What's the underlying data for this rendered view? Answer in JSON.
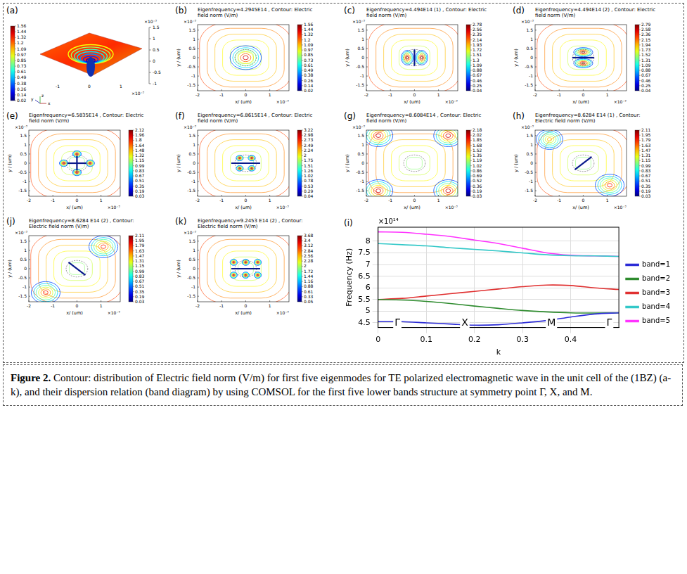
{
  "figure": {
    "contour_axes": {
      "xlabel": "x/ (um)",
      "ylabel": "y / (um)",
      "multiplier": "×10⁻⁷",
      "xlim": [
        -2,
        1.8
      ],
      "ylim": [
        -1.8,
        1.8
      ],
      "xticks": [
        -2,
        -1,
        0,
        1
      ],
      "yticks": [
        1.5,
        1,
        0.5,
        0,
        -0.5,
        -1,
        -1.5
      ]
    },
    "surface_panel": {
      "label": "(a)",
      "colorbar_ticks": [
        1.56,
        1.44,
        1.32,
        1.2,
        1.09,
        0.97,
        0.85,
        0.73,
        0.61,
        0.49,
        0.38,
        0.26,
        0.14,
        0.02
      ],
      "vertical_ticks": [
        1.5,
        1,
        0.5,
        0,
        -0.5,
        -1
      ],
      "xticks": [
        -1,
        0,
        1
      ],
      "axes_triad": [
        "y",
        "z",
        "x"
      ]
    },
    "panels": [
      {
        "label": "(b)",
        "title": "Eigenfrequency=4.2945E14 , Contour: Electric field norm (V/m)",
        "colorbar_ticks": [
          1.56,
          1.44,
          1.32,
          1.2,
          1.09,
          0.97,
          0.85,
          0.73,
          0.61,
          0.49,
          0.38,
          0.26,
          0.14,
          0.02
        ]
      },
      {
        "label": "(c)",
        "title": "Eigenfrequency=4.494E14 (1) , Contour: Electric field norm (V/m)",
        "colorbar_ticks": [
          2.78,
          2.56,
          2.35,
          2.14,
          1.93,
          1.72,
          1.51,
          1.3,
          1.09,
          0.88,
          0.67,
          0.46,
          0.25,
          0.04
        ]
      },
      {
        "label": "(d)",
        "title": "Eigenfrequency=4.494E14 (2) , Contour: Electric field norm (V/m)",
        "colorbar_ticks": [
          2.79,
          2.58,
          2.36,
          2.15,
          1.94,
          1.73,
          1.52,
          1.31,
          1.09,
          0.88,
          0.67,
          0.46,
          0.25,
          0.04
        ]
      },
      {
        "label": "(e)",
        "title": "Eigenfrequency=6.5835E14 , Contour: Electric field norm (V/m)",
        "colorbar_ticks": [
          2.12,
          1.96,
          1.8,
          1.64,
          1.48,
          1.32,
          1.15,
          0.99,
          0.83,
          0.67,
          0.51,
          0.35,
          0.19,
          0.03
        ]
      },
      {
        "label": "(f)",
        "title": "Eigenfrequency=6.8615E14 , Contour: Electric field norm (V/m)",
        "colorbar_ticks": [
          3.22,
          2.98,
          2.73,
          2.49,
          2.24,
          2,
          1.75,
          1.51,
          1.26,
          1.02,
          0.78,
          0.53,
          0.29,
          0.04
        ]
      },
      {
        "label": "(g)",
        "title": "Eigenfrequency=8.6084E14 , Contour: Electric field norm (V/m)",
        "colorbar_ticks": [
          2.18,
          2.02,
          1.85,
          1.68,
          1.52,
          1.35,
          1.19,
          1.02,
          0.86,
          0.69,
          0.52,
          0.36,
          0.19,
          0.03
        ]
      },
      {
        "label": "(h)",
        "title": "Eigenfrequency=8.6284 E14 (1) , Contour: Electric field norm (V/m)",
        "colorbar_ticks": [
          2.11,
          1.95,
          1.79,
          1.63,
          1.47,
          1.31,
          1.15,
          0.99,
          0.83,
          0.67,
          0.51,
          0.35,
          0.19,
          0.03
        ]
      },
      {
        "label": "(j)",
        "title": "Eigenfrequency=8.6284 E14 (2) , Contour: Electric field norm (V/m)",
        "colorbar_ticks": [
          2.11,
          1.95,
          1.79,
          1.63,
          1.47,
          1.31,
          1.15,
          0.99,
          0.83,
          0.67,
          0.51,
          0.35,
          0.19,
          0.03
        ]
      },
      {
        "label": "(k)",
        "title": "Eigenfrequency=9.2453 E14 (2) , Contour: Electric field norm (V/m)",
        "colorbar_ticks": [
          3.68,
          3.4,
          3.12,
          2.84,
          2.56,
          2.28,
          2,
          1.72,
          1.44,
          1.16,
          0.88,
          0.61,
          0.33,
          0.05
        ]
      }
    ]
  },
  "chart_data": {
    "type": "line",
    "panel_label": "(i)",
    "x_label": "k",
    "y_label": "Frequency (Hz)",
    "y_multiplier": "×10¹⁴",
    "x": [
      0,
      0.05,
      0.1,
      0.15,
      0.2,
      0.25,
      0.3,
      0.35,
      0.4,
      0.45,
      0.5
    ],
    "series": [
      {
        "name": "band=1",
        "color": "#2b2bd6",
        "values": [
          4.55,
          4.55,
          4.5,
          4.45,
          4.4,
          4.42,
          4.5,
          4.6,
          4.75,
          4.88,
          4.93
        ]
      },
      {
        "name": "band=2",
        "color": "#2e8b2e",
        "values": [
          5.5,
          5.48,
          5.42,
          5.33,
          5.22,
          5.12,
          5.03,
          4.97,
          4.93,
          4.92,
          4.93
        ]
      },
      {
        "name": "band=3",
        "color": "#e03030",
        "values": [
          5.5,
          5.55,
          5.65,
          5.75,
          5.85,
          5.95,
          6.05,
          6.12,
          6.1,
          6.0,
          5.93
        ]
      },
      {
        "name": "band=4",
        "color": "#33c8c8",
        "values": [
          7.9,
          7.85,
          7.8,
          7.72,
          7.65,
          7.58,
          7.5,
          7.42,
          7.38,
          7.37,
          7.35
        ]
      },
      {
        "name": "band=5",
        "color": "#ff33ff",
        "values": [
          8.4,
          8.38,
          8.3,
          8.2,
          8.05,
          7.9,
          7.7,
          7.5,
          7.4,
          7.37,
          7.35
        ]
      }
    ],
    "xlim": [
      0,
      0.5
    ],
    "ylim": [
      4.3,
      8.6
    ],
    "xticks": [
      0,
      0.1,
      0.2,
      0.3,
      0.4
    ],
    "yticks": [
      4.5,
      5,
      5.5,
      6,
      6.5,
      7,
      7.5,
      8
    ],
    "grid": true,
    "legend": "right",
    "annotations": [
      {
        "text": "Γ",
        "x": 0.04,
        "y": 4.5
      },
      {
        "text": "X",
        "x": 0.18,
        "y": 4.5
      },
      {
        "text": "M",
        "x": 0.36,
        "y": 4.5
      },
      {
        "text": "Γ",
        "x": 0.48,
        "y": 4.5
      }
    ]
  },
  "caption": {
    "label": "Figure 2.",
    "text": "Contour: distribution of Electric field norm (V/m) for first five eigenmodes for TE polarized electromagnetic wave in the unit cell of the (1BZ) (a-k), and their dispersion relation (band diagram) by using COMSOL for the first five lower bands structure at symmetry point Γ, X, and M."
  }
}
